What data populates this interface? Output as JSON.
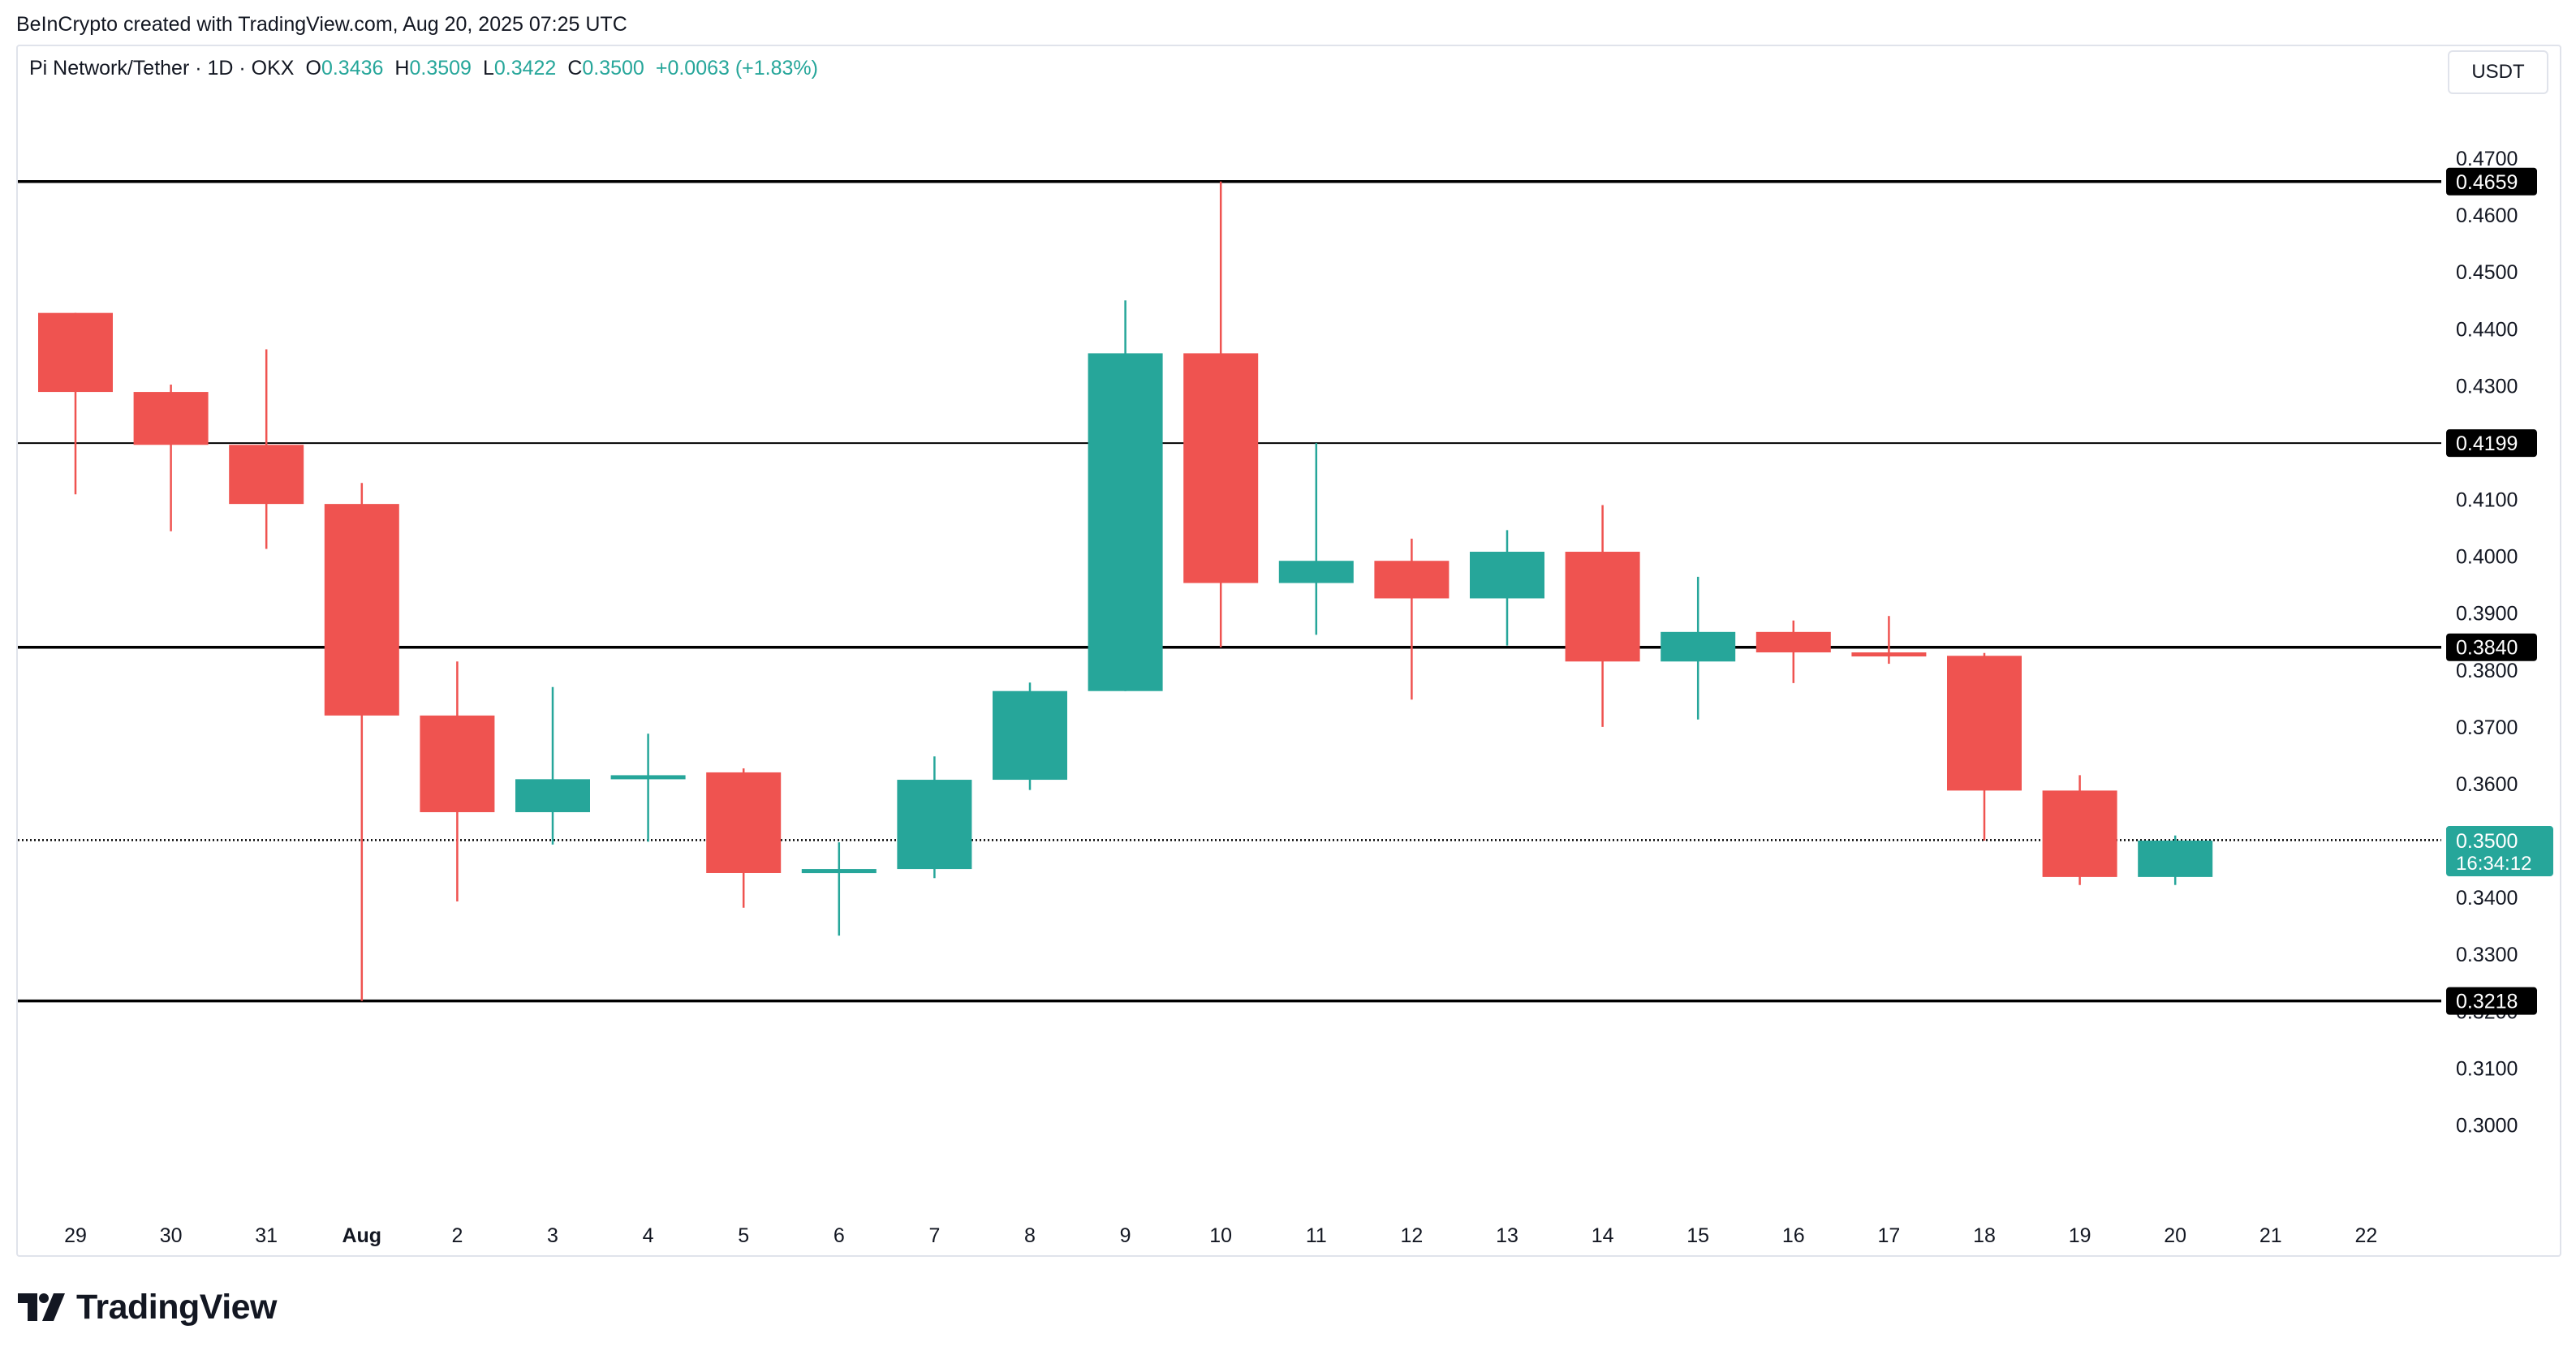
{
  "caption": "BeInCrypto created with TradingView.com, Aug 20, 2025 07:25 UTC",
  "legend": {
    "symbol": "Pi Network/Tether · 1D · OKX",
    "open_label": "O",
    "open": "0.3436",
    "high_label": "H",
    "high": "0.3509",
    "low_label": "L",
    "low": "0.3422",
    "close_label": "C",
    "close": "0.3500",
    "change": "+0.0063 (+1.83%)"
  },
  "currency": "USDT",
  "brand": {
    "name": "TradingView",
    "icon": "tradingview-logo-icon"
  },
  "colors": {
    "up": "#26a69a",
    "down": "#ef5350",
    "level_line": "#000000",
    "label_bg": "#000000",
    "axis_text": "#131722"
  },
  "chart_data": {
    "type": "candlestick",
    "title": "Pi Network/Tether · 1D · OKX",
    "xlabel": "",
    "ylabel": "",
    "ylim": [
      0.2935,
      0.474
    ],
    "grid": false,
    "x_ticks": [
      "29",
      "30",
      "31",
      "Aug",
      "2",
      "3",
      "4",
      "5",
      "6",
      "7",
      "8",
      "9",
      "10",
      "11",
      "12",
      "13",
      "14",
      "15",
      "16",
      "17",
      "18",
      "19",
      "20",
      "21",
      "22"
    ],
    "y_ticks": [
      "0.4700",
      "0.4600",
      "0.4500",
      "0.4400",
      "0.4300",
      "0.4100",
      "0.4000",
      "0.3900",
      "0.3800",
      "0.3700",
      "0.3600",
      "0.3400",
      "0.3300",
      "0.3200",
      "0.3100",
      "0.3000"
    ],
    "candles": [
      {
        "date": "29",
        "open": 0.4428,
        "high": 0.4428,
        "low": 0.4109,
        "close": 0.4289
      },
      {
        "date": "30",
        "open": 0.4289,
        "high": 0.4302,
        "low": 0.4044,
        "close": 0.4196
      },
      {
        "date": "31",
        "open": 0.4196,
        "high": 0.4364,
        "low": 0.4013,
        "close": 0.4092
      },
      {
        "date": "Aug",
        "open": 0.4092,
        "high": 0.4129,
        "low": 0.3218,
        "close": 0.372
      },
      {
        "date": "2",
        "open": 0.372,
        "high": 0.3815,
        "low": 0.3393,
        "close": 0.355
      },
      {
        "date": "3",
        "open": 0.355,
        "high": 0.377,
        "low": 0.3493,
        "close": 0.3608
      },
      {
        "date": "4",
        "open": 0.3608,
        "high": 0.3688,
        "low": 0.3498,
        "close": 0.3615
      },
      {
        "date": "5",
        "open": 0.362,
        "high": 0.3627,
        "low": 0.3382,
        "close": 0.3443
      },
      {
        "date": "6",
        "open": 0.3443,
        "high": 0.3497,
        "low": 0.3333,
        "close": 0.345
      },
      {
        "date": "7",
        "open": 0.345,
        "high": 0.3648,
        "low": 0.3434,
        "close": 0.3607
      },
      {
        "date": "8",
        "open": 0.3607,
        "high": 0.3778,
        "low": 0.3589,
        "close": 0.3763
      },
      {
        "date": "9",
        "open": 0.3763,
        "high": 0.445,
        "low": 0.3763,
        "close": 0.4357
      },
      {
        "date": "10",
        "open": 0.4357,
        "high": 0.4659,
        "low": 0.384,
        "close": 0.3953
      },
      {
        "date": "11",
        "open": 0.3953,
        "high": 0.4199,
        "low": 0.3862,
        "close": 0.3992
      },
      {
        "date": "12",
        "open": 0.3992,
        "high": 0.4031,
        "low": 0.3748,
        "close": 0.3926
      },
      {
        "date": "13",
        "open": 0.3926,
        "high": 0.4046,
        "low": 0.3843,
        "close": 0.4008
      },
      {
        "date": "14",
        "open": 0.4008,
        "high": 0.409,
        "low": 0.37,
        "close": 0.3815
      },
      {
        "date": "15",
        "open": 0.3815,
        "high": 0.3964,
        "low": 0.3713,
        "close": 0.3867
      },
      {
        "date": "16",
        "open": 0.3867,
        "high": 0.3887,
        "low": 0.3777,
        "close": 0.3831
      },
      {
        "date": "17",
        "open": 0.3831,
        "high": 0.3895,
        "low": 0.3811,
        "close": 0.3825
      },
      {
        "date": "18",
        "open": 0.3825,
        "high": 0.383,
        "low": 0.35,
        "close": 0.3588
      },
      {
        "date": "19",
        "open": 0.3588,
        "high": 0.3615,
        "low": 0.3422,
        "close": 0.3436
      },
      {
        "date": "20",
        "open": 0.3436,
        "high": 0.3509,
        "low": 0.3422,
        "close": 0.35
      }
    ],
    "levels": [
      {
        "value": 0.4659,
        "label": "0.4659",
        "style": "bold"
      },
      {
        "value": 0.4199,
        "label": "0.4199",
        "style": "thin"
      },
      {
        "value": 0.384,
        "label": "0.3840",
        "style": "bold"
      },
      {
        "value": 0.3501,
        "label": "0.3501",
        "style": "dotted"
      },
      {
        "value": 0.3218,
        "label": "0.3218",
        "style": "bold"
      }
    ],
    "last_price": {
      "value": 0.35,
      "label": "0.3500",
      "countdown": "16:34:12"
    }
  }
}
